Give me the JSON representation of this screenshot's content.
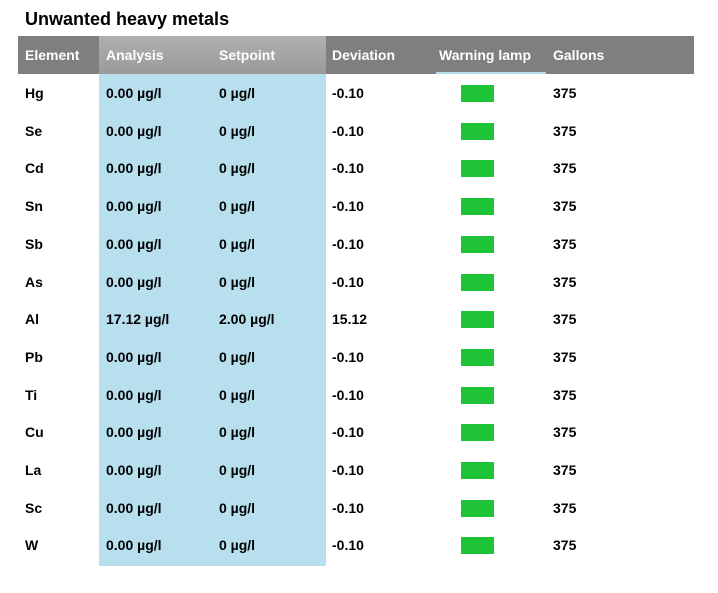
{
  "title": "Unwanted heavy metals",
  "columns": {
    "element": "Element",
    "analysis": "Analysis",
    "setpoint": "Setpoint",
    "deviation": "Deviation",
    "warning_lamp": "Warning lamp",
    "gallons": "Gallons"
  },
  "colors": {
    "header_bg": "#7f7f7f",
    "highlight_band": "#b7dfee",
    "lamp_ok": "#1ec337"
  },
  "rows": [
    {
      "element": "Hg",
      "analysis": "0.00 µg/l",
      "setpoint": "0 µg/l",
      "deviation": "-0.10",
      "lamp": "ok",
      "gallons": "375"
    },
    {
      "element": "Se",
      "analysis": "0.00 µg/l",
      "setpoint": "0 µg/l",
      "deviation": "-0.10",
      "lamp": "ok",
      "gallons": "375"
    },
    {
      "element": "Cd",
      "analysis": "0.00 µg/l",
      "setpoint": "0 µg/l",
      "deviation": "-0.10",
      "lamp": "ok",
      "gallons": "375"
    },
    {
      "element": "Sn",
      "analysis": "0.00 µg/l",
      "setpoint": "0 µg/l",
      "deviation": "-0.10",
      "lamp": "ok",
      "gallons": "375"
    },
    {
      "element": "Sb",
      "analysis": "0.00 µg/l",
      "setpoint": "0 µg/l",
      "deviation": "-0.10",
      "lamp": "ok",
      "gallons": "375"
    },
    {
      "element": "As",
      "analysis": "0.00 µg/l",
      "setpoint": "0 µg/l",
      "deviation": "-0.10",
      "lamp": "ok",
      "gallons": "375"
    },
    {
      "element": "Al",
      "analysis": "17.12 µg/l",
      "setpoint": "2.00 µg/l",
      "deviation": "15.12",
      "lamp": "ok",
      "gallons": "375"
    },
    {
      "element": "Pb",
      "analysis": "0.00 µg/l",
      "setpoint": "0 µg/l",
      "deviation": "-0.10",
      "lamp": "ok",
      "gallons": "375"
    },
    {
      "element": "Ti",
      "analysis": "0.00 µg/l",
      "setpoint": "0 µg/l",
      "deviation": "-0.10",
      "lamp": "ok",
      "gallons": "375"
    },
    {
      "element": "Cu",
      "analysis": "0.00 µg/l",
      "setpoint": "0 µg/l",
      "deviation": "-0.10",
      "lamp": "ok",
      "gallons": "375"
    },
    {
      "element": "La",
      "analysis": "0.00 µg/l",
      "setpoint": "0 µg/l",
      "deviation": "-0.10",
      "lamp": "ok",
      "gallons": "375"
    },
    {
      "element": "Sc",
      "analysis": "0.00 µg/l",
      "setpoint": "0 µg/l",
      "deviation": "-0.10",
      "lamp": "ok",
      "gallons": "375"
    },
    {
      "element": "W",
      "analysis": "0.00 µg/l",
      "setpoint": "0 µg/l",
      "deviation": "-0.10",
      "lamp": "ok",
      "gallons": "375"
    }
  ]
}
